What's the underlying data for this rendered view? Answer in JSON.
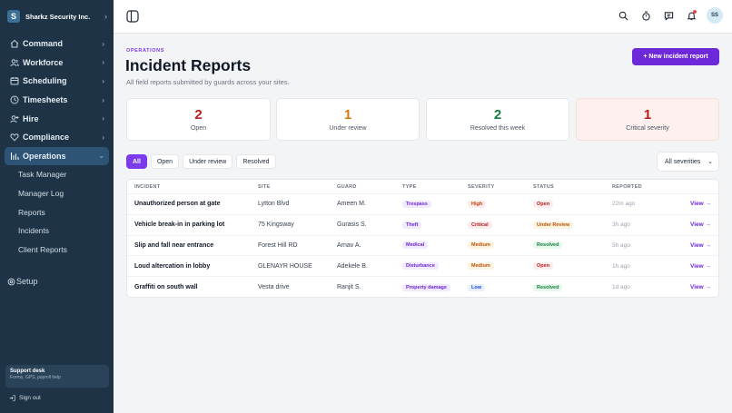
{
  "org": {
    "initial": "S",
    "name": "Sharkz Security Inc."
  },
  "nav": [
    {
      "label": "Command",
      "icon": "house-icon"
    },
    {
      "label": "Workforce",
      "icon": "people-icon"
    },
    {
      "label": "Scheduling",
      "icon": "calendar-icon"
    },
    {
      "label": "Timesheets",
      "icon": "clock-icon"
    },
    {
      "label": "Hire",
      "icon": "user-plus-icon"
    },
    {
      "label": "Compliance",
      "icon": "heart-icon"
    },
    {
      "label": "Operations",
      "icon": "bar-chart-icon",
      "active": true
    }
  ],
  "sub_nav": [
    "Task Manager",
    "Manager Log",
    "Reports",
    "Incidents",
    "Client Reports"
  ],
  "setup_label": "Setup",
  "support": {
    "title": "Support desk",
    "subtitle": "Forms, GPS, payroll help"
  },
  "signout_label": "Sign out",
  "user": {
    "initials": "SS"
  },
  "page": {
    "eyebrow": "OPERATIONS",
    "title": "Incident Reports",
    "subtitle": "All field reports submitted by guards across your sites.",
    "new_button": "+ New incident report"
  },
  "stats": [
    {
      "value": "2",
      "label": "Open",
      "color": "#b91c1c"
    },
    {
      "value": "1",
      "label": "Under review",
      "color": "#d97706"
    },
    {
      "value": "2",
      "label": "Resolved this week",
      "color": "#15803d"
    },
    {
      "value": "1",
      "label": "Critical severity",
      "color": "#b91c1c"
    }
  ],
  "filters": [
    "All",
    "Open",
    "Under review",
    "Resolved"
  ],
  "severity_select": "All severities",
  "table": {
    "headers": [
      "INCIDENT",
      "SITE",
      "GUARD",
      "TYPE",
      "SEVERITY",
      "STATUS",
      "REPORTED",
      ""
    ],
    "rows": [
      {
        "incident": "Unauthorized person at gate",
        "site": "Lytton Blvd",
        "guard": "Ameen M.",
        "type": "Trespass",
        "severity": "High",
        "status": "Open",
        "reported": "22m ago",
        "action": "View →"
      },
      {
        "incident": "Vehicle break-in in parking lot",
        "site": "75 Kingsway",
        "guard": "Gurasis S.",
        "type": "Theft",
        "severity": "Critical",
        "status": "Under Review",
        "reported": "3h ago",
        "action": "View →"
      },
      {
        "incident": "Slip and fall near entrance",
        "site": "Forest Hill RD",
        "guard": "Arnav A.",
        "type": "Medical",
        "severity": "Medium",
        "status": "Resolved",
        "reported": "5h ago",
        "action": "View →"
      },
      {
        "incident": "Loud altercation in lobby",
        "site": "GLENAYR HOUSE",
        "guard": "Adekele B.",
        "type": "Disturbance",
        "severity": "Medium",
        "status": "Open",
        "reported": "1h ago",
        "action": "View →"
      },
      {
        "incident": "Graffiti on south wall",
        "site": "Vesta drive",
        "guard": "Ranjit S.",
        "type": "Property damage",
        "severity": "Low",
        "status": "Resolved",
        "reported": "1d ago",
        "action": "View →"
      }
    ]
  }
}
